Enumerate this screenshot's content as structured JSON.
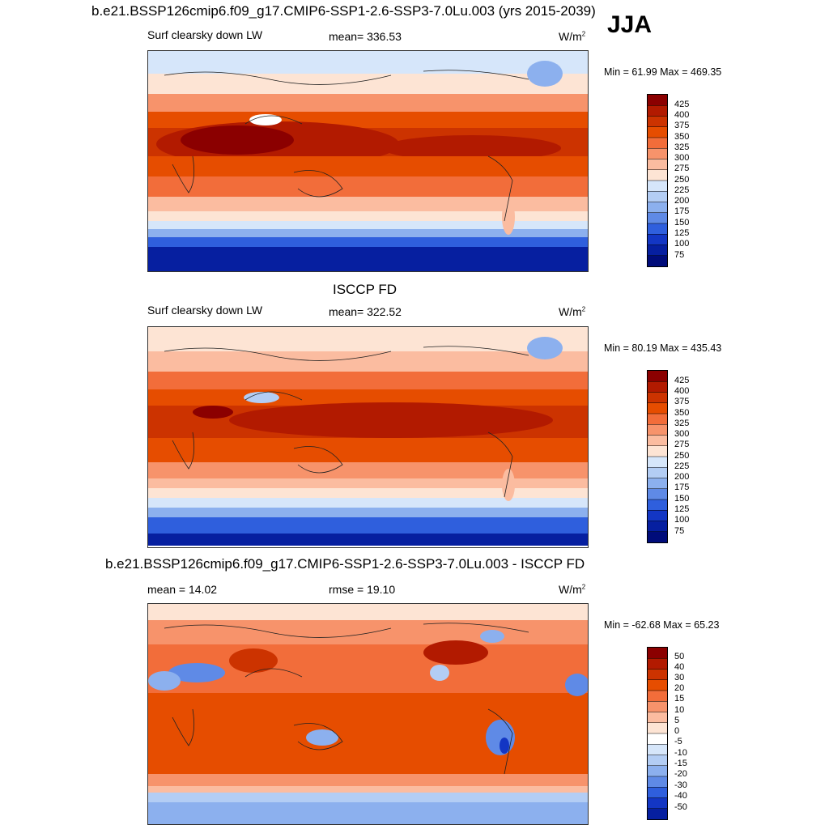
{
  "season": "JJA",
  "panels": [
    {
      "title": "b.e21.BSSP126cmip6.f09_g17.CMIP6-SSP1-2.6-SSP3-7.0Lu.003 (yrs 2015-2039)",
      "left_label": "Surf clearsky down LW",
      "center_label": "mean= 336.53",
      "units": "W/m",
      "units_sup": "2",
      "minmax": "Min =  61.99 Max = 469.35",
      "colorbar_labels": [
        "425",
        "400",
        "375",
        "350",
        "325",
        "300",
        "275",
        "250",
        "225",
        "200",
        "175",
        "150",
        "125",
        "100",
        "75"
      ]
    },
    {
      "title": "ISCCP FD",
      "left_label": "Surf clearsky down LW",
      "center_label": "mean= 322.52",
      "units": "W/m",
      "units_sup": "2",
      "minmax": "Min =  80.19 Max = 435.43",
      "colorbar_labels": [
        "425",
        "400",
        "375",
        "350",
        "325",
        "300",
        "275",
        "250",
        "225",
        "200",
        "175",
        "150",
        "125",
        "100",
        "75"
      ]
    },
    {
      "title": "b.e21.BSSP126cmip6.f09_g17.CMIP6-SSP1-2.6-SSP3-7.0Lu.003 - ISCCP FD",
      "left_label": "mean =  14.02",
      "center_label": "rmse =  19.10",
      "units": "W/m",
      "units_sup": "2",
      "minmax": "Min = -62.68 Max =  65.23",
      "colorbar_labels": [
        "50",
        "40",
        "30",
        "20",
        "15",
        "10",
        "5",
        "0",
        "-5",
        "-10",
        "-15",
        "-20",
        "-30",
        "-40",
        "-50"
      ]
    }
  ],
  "colors": {
    "abs_palette": [
      "#8b0000",
      "#b21a00",
      "#cc3300",
      "#e64d00",
      "#f26d3a",
      "#f7936b",
      "#fbbca0",
      "#fde4d4",
      "#d6e6fa",
      "#b3cdf4",
      "#8cb0ee",
      "#5f8ae6",
      "#2f5fdd",
      "#1336c4",
      "#061fa0",
      "#000c7a"
    ],
    "diff_palette": [
      "#8b0000",
      "#b21a00",
      "#cc3300",
      "#e64d00",
      "#f26d3a",
      "#f7936b",
      "#fbbca0",
      "#fde4d4",
      "#ffffff",
      "#d6e6fa",
      "#b3cdf4",
      "#8cb0ee",
      "#5f8ae6",
      "#2f5fdd",
      "#1336c4",
      "#061fa0",
      "#000c7a"
    ]
  },
  "chart_data": [
    {
      "type": "heatmap",
      "title": "b.e21.BSSP126cmip6.f09_g17.CMIP6-SSP1-2.6-SSP3-7.0Lu.003 (yrs 2015-2039)",
      "variable": "Surf clearsky down LW",
      "units": "W/m2",
      "mean": 336.53,
      "min": 61.99,
      "max": 469.35,
      "levels": [
        75,
        100,
        125,
        150,
        175,
        200,
        225,
        250,
        275,
        300,
        325,
        350,
        375,
        400,
        425
      ]
    },
    {
      "type": "heatmap",
      "title": "ISCCP FD",
      "variable": "Surf clearsky down LW",
      "units": "W/m2",
      "mean": 322.52,
      "min": 80.19,
      "max": 435.43,
      "levels": [
        75,
        100,
        125,
        150,
        175,
        200,
        225,
        250,
        275,
        300,
        325,
        350,
        375,
        400,
        425
      ]
    },
    {
      "type": "heatmap",
      "title": "b.e21.BSSP126cmip6.f09_g17.CMIP6-SSP1-2.6-SSP3-7.0Lu.003 - ISCCP FD",
      "units": "W/m2",
      "mean": 14.02,
      "rmse": 19.1,
      "min": -62.68,
      "max": 65.23,
      "levels": [
        -50,
        -40,
        -30,
        -20,
        -15,
        -10,
        -5,
        0,
        5,
        10,
        15,
        20,
        30,
        40,
        50
      ]
    }
  ]
}
